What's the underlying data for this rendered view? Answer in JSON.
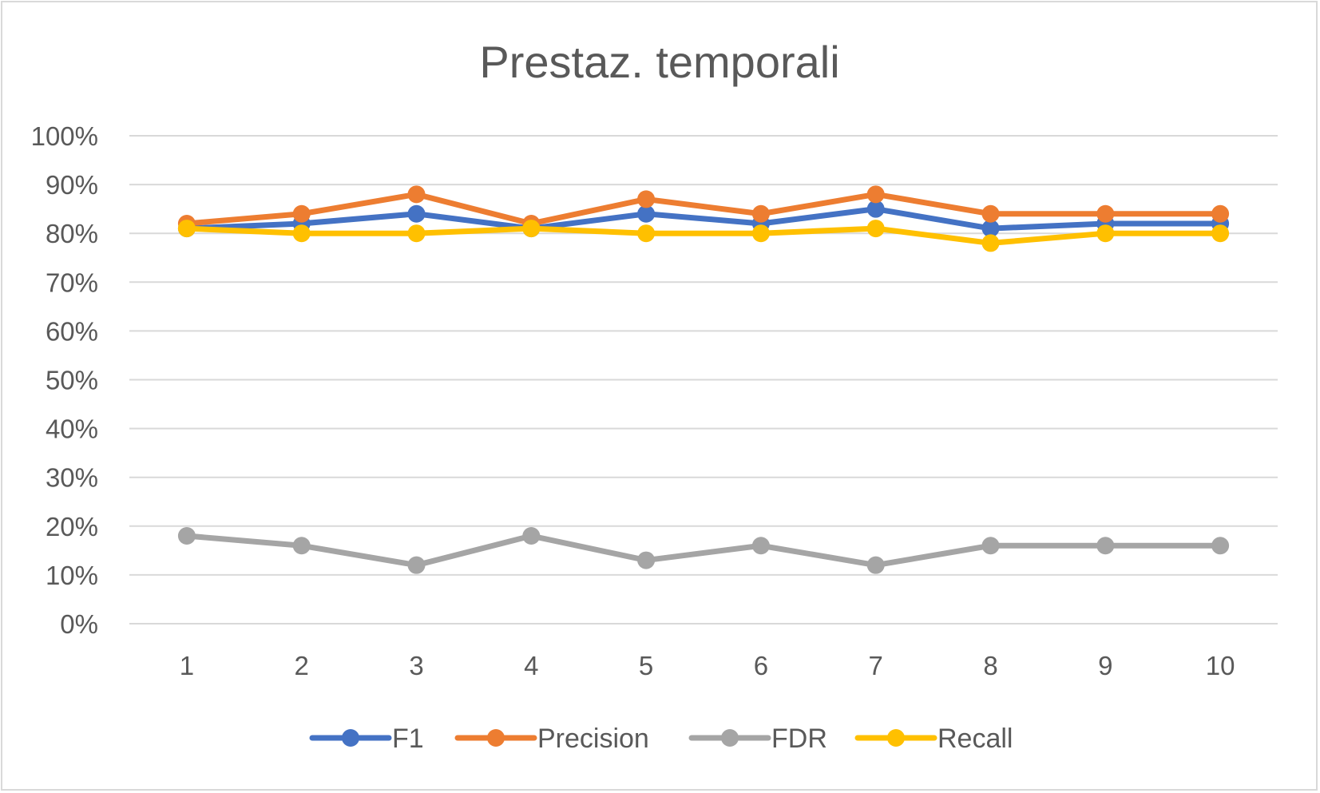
{
  "chart_data": {
    "type": "line",
    "title": "Prestaz. temporali",
    "xlabel": "",
    "ylabel": "",
    "categories": [
      "1",
      "2",
      "3",
      "4",
      "5",
      "6",
      "7",
      "8",
      "9",
      "10"
    ],
    "ylim": [
      0,
      100
    ],
    "yticks": [
      "0%",
      "10%",
      "20%",
      "30%",
      "40%",
      "50%",
      "60%",
      "70%",
      "80%",
      "90%",
      "100%"
    ],
    "grid": true,
    "legend_position": "bottom",
    "series": [
      {
        "name": "F1",
        "color": "#4472c4",
        "values": [
          81,
          82,
          84,
          81,
          84,
          82,
          85,
          81,
          82,
          82
        ]
      },
      {
        "name": "Precision",
        "color": "#ed7d31",
        "values": [
          82,
          84,
          88,
          82,
          87,
          84,
          88,
          84,
          84,
          84
        ]
      },
      {
        "name": "FDR",
        "color": "#a5a5a5",
        "values": [
          18,
          16,
          12,
          18,
          13,
          16,
          12,
          16,
          16,
          16
        ]
      },
      {
        "name": "Recall",
        "color": "#ffc000",
        "values": [
          81,
          80,
          80,
          81,
          80,
          80,
          81,
          78,
          80,
          80
        ]
      }
    ]
  }
}
